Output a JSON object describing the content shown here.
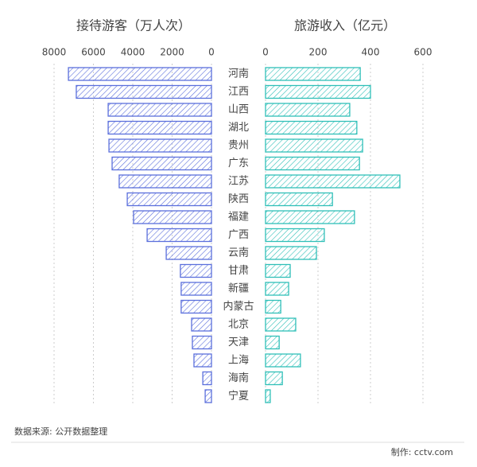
{
  "chart_data": {
    "type": "butterfly",
    "categories": [
      "河南",
      "江西",
      "山西",
      "湖北",
      "贵州",
      "广东",
      "江苏",
      "陕西",
      "福建",
      "广西",
      "云南",
      "甘肃",
      "新疆",
      "内蒙古",
      "北京",
      "天津",
      "上海",
      "海南",
      "宁夏"
    ],
    "series": [
      {
        "name": "接待游客（万人次）",
        "color": "#5b6fdc",
        "values": [
          7270,
          6870,
          5250,
          5250,
          5210,
          5050,
          4690,
          4280,
          3960,
          3270,
          2300,
          1580,
          1540,
          1540,
          1010,
          970,
          890,
          440,
          320
        ],
        "xlim": [
          0,
          8000
        ],
        "xticks": [
          8000,
          6000,
          4000,
          2000,
          0
        ]
      },
      {
        "name": "旅游收入（亿元）",
        "color": "#2fbfb8",
        "values": [
          361,
          400,
          321,
          348,
          370,
          358,
          512,
          255,
          339,
          224,
          194,
          94,
          88,
          58,
          115,
          52,
          133,
          64,
          18
        ],
        "xlim": [
          0,
          600
        ],
        "xticks": [
          0,
          200,
          400,
          600
        ]
      }
    ],
    "grid": true
  },
  "source": "数据来源: 公开数据整理",
  "credit": "制作: cctv.com"
}
